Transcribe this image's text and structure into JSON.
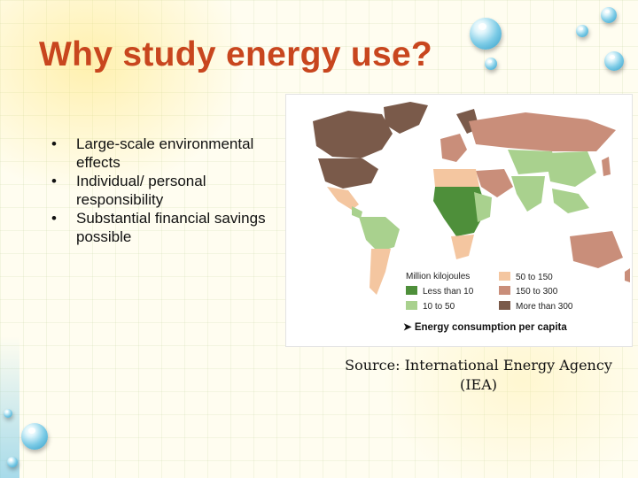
{
  "slide": {
    "title": "Why study energy use?",
    "bullets": [
      "Large-scale environmental effects",
      "Individual/ personal responsibility",
      "Substantial financial savings possible"
    ],
    "source": "Source: International Energy Agency (IEA)"
  },
  "map": {
    "legend_title": "Million kilojoules",
    "legend": [
      {
        "label": "Less than 10",
        "color": "#4e8f3a"
      },
      {
        "label": "10 to 50",
        "color": "#a9d18e"
      },
      {
        "label": "50 to 150",
        "color": "#f4c6a0"
      },
      {
        "label": "150 to 300",
        "color": "#c98e7a"
      },
      {
        "label": "More than 300",
        "color": "#7a5a4a"
      }
    ],
    "caption": "Energy consumption per capita"
  },
  "colors": {
    "title": "#c8461e",
    "background": "#fffdf0"
  }
}
